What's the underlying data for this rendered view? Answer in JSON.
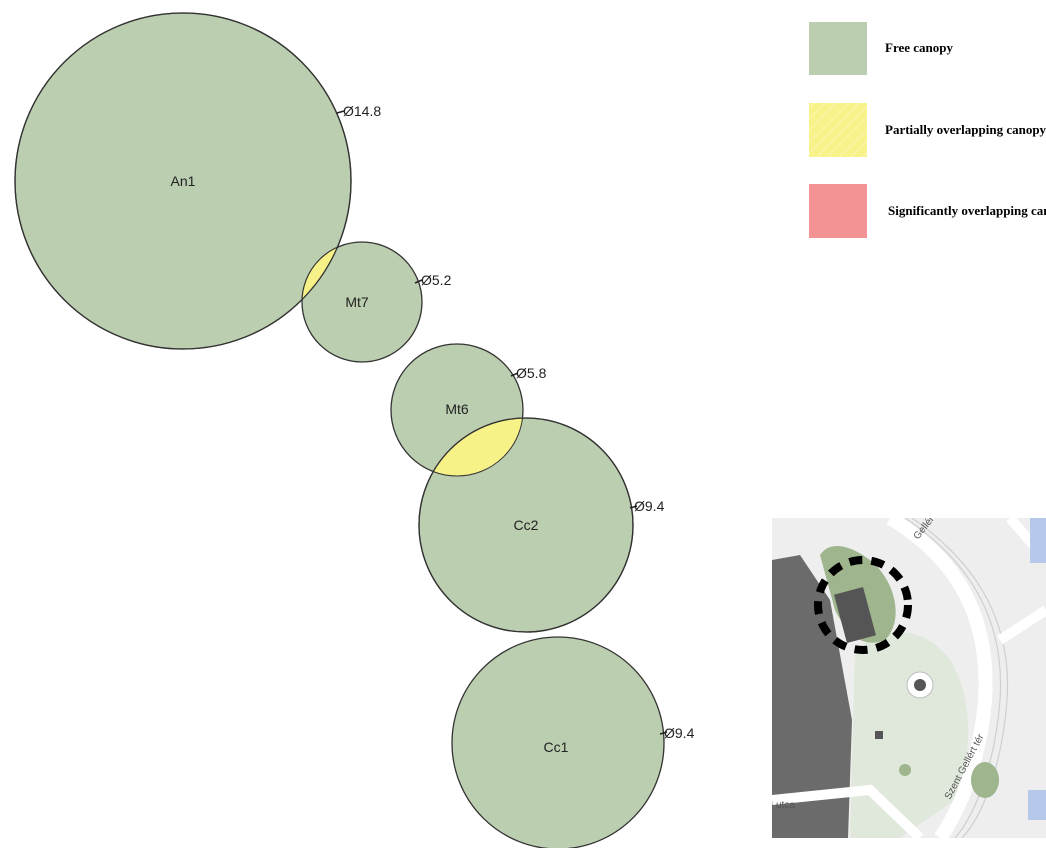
{
  "trees": [
    {
      "id": "An1",
      "diameter": "Ø14.8"
    },
    {
      "id": "Mt7",
      "diameter": "Ø5.2"
    },
    {
      "id": "Mt6",
      "diameter": "Ø5.8"
    },
    {
      "id": "Cc2",
      "diameter": "Ø9.4"
    },
    {
      "id": "Cc1",
      "diameter": "Ø9.4"
    }
  ],
  "legend": {
    "items": [
      {
        "label": "Free canopy",
        "color": "#bcceb0"
      },
      {
        "label": "Partially overlapping canopy",
        "color": "#f7f28a"
      },
      {
        "label": "Significantly overlapping canopy",
        "color": "#f39393"
      }
    ]
  },
  "colors": {
    "canopy_fill": "#bcceb0",
    "overlap_fill": "#f7f288",
    "outline": "#333333"
  },
  "map": {
    "labels": {
      "top": "Gellért tér",
      "right": "Szent Gellért tér",
      "bottom": "utca"
    }
  }
}
